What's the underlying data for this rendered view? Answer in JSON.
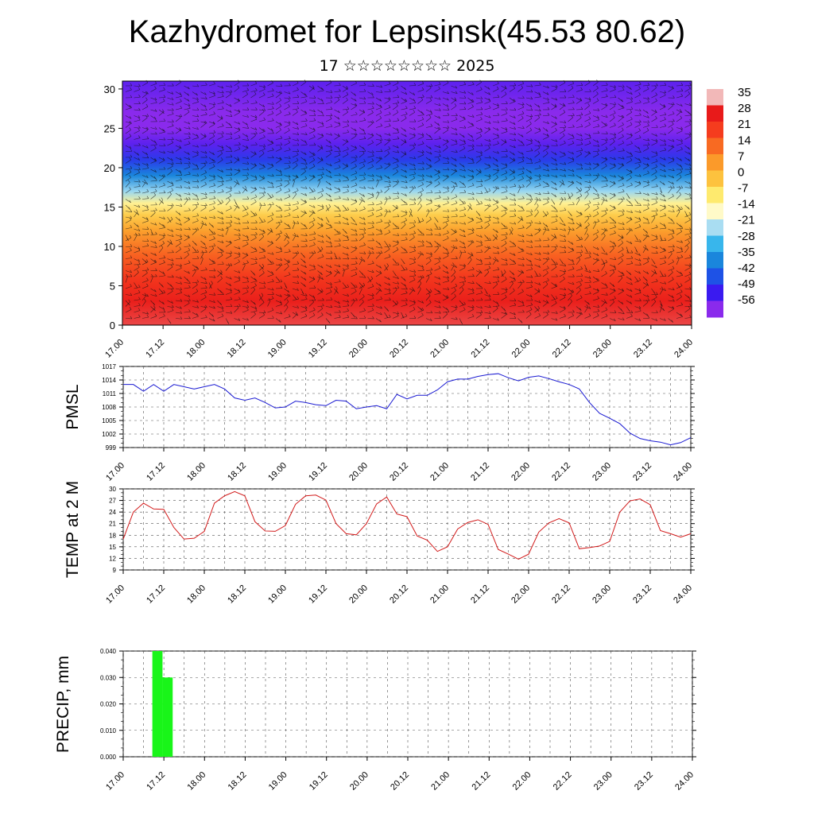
{
  "header": {
    "title": "Kazhydromet for Lepsinsk(45.53 80.62)",
    "subtitle": "17 ☆☆☆☆☆☆☆☆ 2025"
  },
  "time_ticks": [
    "17.00",
    "17.12",
    "18.00",
    "18.12",
    "19.00",
    "19.12",
    "20.00",
    "20.12",
    "21.00",
    "21.12",
    "22.00",
    "22.12",
    "23.00",
    "23.12",
    "24.00"
  ],
  "chart_data": [
    {
      "id": "cross-section",
      "type": "heatmap",
      "title": "",
      "x_ticks": [
        "17.00",
        "17.12",
        "18.00",
        "18.12",
        "19.00",
        "19.12",
        "20.00",
        "20.12",
        "21.00",
        "21.12",
        "22.00",
        "22.12",
        "23.00",
        "23.12",
        "24.00"
      ],
      "y_ticks": [
        0,
        5,
        10,
        15,
        20,
        25,
        30
      ],
      "ylim": [
        0,
        31
      ],
      "colorbar_labels": [
        "35",
        "28",
        "21",
        "14",
        "7",
        "0",
        "-7",
        "-14",
        "-21",
        "-28",
        "-35",
        "-42",
        "-49",
        "-56"
      ],
      "colorbar_colors": [
        "#f2b8b8",
        "#e81a1a",
        "#f53c1e",
        "#f86a22",
        "#fb9a2a",
        "#fdc23e",
        "#feea6e",
        "#fffac8",
        "#a9ddf2",
        "#38b6ec",
        "#1a86dc",
        "#1e52e6",
        "#3a1af0",
        "#8a2aec"
      ],
      "temperature_profile": [
        {
          "z": 0,
          "t": 30
        },
        {
          "z": 3,
          "t": 27
        },
        {
          "z": 6,
          "t": 22
        },
        {
          "z": 9,
          "t": 15
        },
        {
          "z": 12,
          "t": 6
        },
        {
          "z": 14,
          "t": -2
        },
        {
          "z": 15.5,
          "t": -10
        },
        {
          "z": 17,
          "t": -22
        },
        {
          "z": 19,
          "t": -35
        },
        {
          "z": 21,
          "t": -45
        },
        {
          "z": 23,
          "t": -52
        },
        {
          "z": 25,
          "t": -58
        },
        {
          "z": 27,
          "t": -56
        },
        {
          "z": 31,
          "t": -52
        }
      ]
    },
    {
      "id": "pmsl",
      "type": "line",
      "ylabel": "PMSL",
      "ylim": [
        999,
        1017
      ],
      "y_ticks": [
        999,
        1002,
        1005,
        1008,
        1011,
        1014,
        1017
      ],
      "color": "#1a1ad2",
      "x_hours": [
        0,
        3,
        6,
        9,
        12,
        15,
        18,
        21,
        24,
        27,
        30,
        33,
        36,
        39,
        42,
        45,
        48,
        51,
        54,
        57,
        60,
        63,
        66,
        69,
        72,
        75,
        78,
        81,
        84,
        87,
        90,
        93,
        96,
        99,
        102,
        105,
        108,
        111,
        114,
        117,
        120,
        123,
        126,
        129,
        132,
        135,
        138,
        141,
        144,
        147,
        150,
        153,
        156,
        159,
        162,
        165,
        168
      ],
      "values": [
        1013,
        1013,
        1011.5,
        1013,
        1011.5,
        1013,
        1012.5,
        1012,
        1012.5,
        1013,
        1012,
        1010,
        1009.5,
        1010,
        1009,
        1007.8,
        1008,
        1009.3,
        1009,
        1008.5,
        1008.3,
        1009.5,
        1009.3,
        1007.6,
        1008,
        1008.3,
        1007.6,
        1010.8,
        1009.8,
        1010.6,
        1010.6,
        1011.8,
        1013.6,
        1014.2,
        1014.2,
        1014.8,
        1015.2,
        1015.4,
        1014.5,
        1013.8,
        1014.6,
        1014.9,
        1014.3,
        1013.6,
        1013,
        1012,
        1009,
        1006.6,
        1005.5,
        1004.3,
        1002.2,
        1001,
        1000.5,
        1000.2,
        999.6,
        1000.1,
        1001.2
      ]
    },
    {
      "id": "temp2m",
      "type": "line",
      "ylabel": "TEMP at 2 M",
      "ylim": [
        9,
        30
      ],
      "y_ticks": [
        9,
        12,
        15,
        18,
        21,
        24,
        27,
        30
      ],
      "color": "#d21a1a",
      "x_hours": [
        0,
        3,
        6,
        9,
        12,
        15,
        18,
        21,
        24,
        27,
        30,
        33,
        36,
        39,
        42,
        45,
        48,
        51,
        54,
        57,
        60,
        63,
        66,
        69,
        72,
        75,
        78,
        81,
        84,
        87,
        90,
        93,
        96,
        99,
        102,
        105,
        108,
        111,
        114,
        117,
        120,
        123,
        126,
        129,
        132,
        135,
        138,
        141,
        144,
        147,
        150,
        153,
        156,
        159,
        162,
        165,
        168
      ],
      "values": [
        17,
        24,
        26.3,
        24.8,
        24.7,
        20,
        17,
        17.2,
        19,
        26.3,
        28.2,
        29.3,
        28.2,
        21.5,
        19.1,
        19,
        20.5,
        26,
        28.2,
        28.4,
        27.1,
        21,
        18.4,
        18.1,
        21,
        26.1,
        27.9,
        23.5,
        22.8,
        17.8,
        16.7,
        13.8,
        15,
        19.6,
        21.3,
        22,
        20.8,
        14.3,
        13.1,
        11.8,
        13.1,
        18.8,
        21.2,
        22.3,
        21.2,
        14.5,
        14.8,
        15.2,
        16.4,
        24,
        26.9,
        27.4,
        25.9,
        19.2,
        18.4,
        17.5,
        18.4
      ]
    },
    {
      "id": "precip",
      "type": "bar",
      "ylabel": "PRECIP, mm",
      "ylim": [
        0,
        0.04
      ],
      "y_ticks": [
        "0.000",
        "0.010",
        "0.020",
        "0.030",
        "0.040"
      ],
      "color": "#19f519",
      "bars": [
        {
          "start_hour": 8.6,
          "end_hour": 11.6,
          "value": 0.04
        },
        {
          "start_hour": 11.6,
          "end_hour": 14.6,
          "value": 0.03
        }
      ]
    }
  ]
}
